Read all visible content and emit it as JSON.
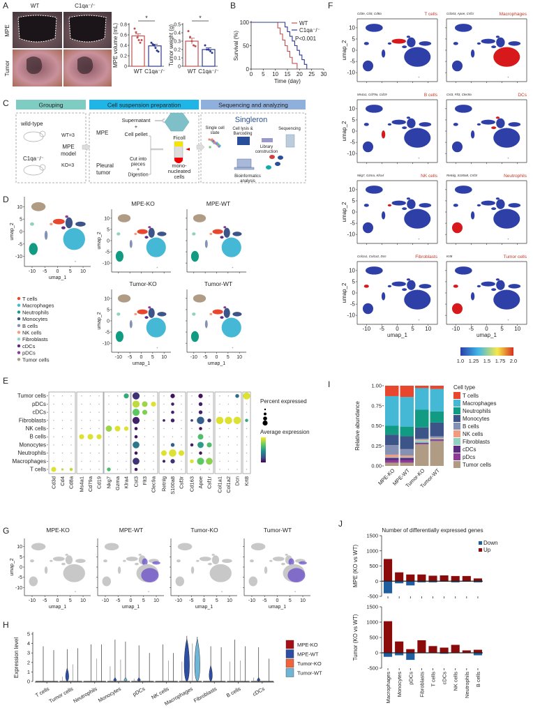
{
  "panel_labels": {
    "A": "A",
    "B": "B",
    "C": "C",
    "D": "D",
    "E": "E",
    "F": "F",
    "G": "G",
    "H": "H",
    "I": "I",
    "J": "J"
  },
  "colors": {
    "wt": "#c0504d",
    "ko": "#2b3990",
    "umap_base": "#2e3fa8",
    "umap_highlight": "#d7191c",
    "umap_grey": "#c8c8c8",
    "umap_purple": "#6a4fc9",
    "cell_types": {
      "T cells": "#e8472e",
      "Macrophages": "#45b8d6",
      "Neutrophils": "#119b83",
      "Monocytes": "#3c5488",
      "B cells": "#8491b4",
      "NK cells": "#f39b7f",
      "Fibroblasts": "#91d1c2",
      "cDCs": "#5b2c83",
      "pDCs": "#8e3b95",
      "Tumor cells": "#b09c85"
    }
  },
  "panel_a": {
    "col_labels": [
      "WT",
      "C1qa⁻/⁻"
    ],
    "row_labels": [
      "MPE",
      "Tumor"
    ],
    "charts": [
      {
        "type": "bar",
        "ylabel": "MPE volume (mL)",
        "categories": [
          "WT",
          "C1qa⁻/⁻"
        ],
        "values": [
          0.58,
          0.39
        ],
        "errors": [
          0.04,
          0.03
        ],
        "points": [
          [
            0.72,
            0.65,
            0.55,
            0.5,
            0.45,
            0.5
          ],
          [
            0.45,
            0.42,
            0.4,
            0.35,
            0.3,
            0.28
          ]
        ],
        "ylim": [
          0,
          0.8
        ],
        "yticks": [
          "0",
          "0.2",
          "0.4",
          "0.6",
          "0.8"
        ],
        "significance": "*"
      },
      {
        "type": "bar",
        "ylabel": "Tumor weight (g)",
        "categories": [
          "WT",
          "C1qa⁻/⁻"
        ],
        "values": [
          0.3,
          0.2
        ],
        "errors": [
          0.035,
          0.02
        ],
        "points": [
          [
            0.42,
            0.35,
            0.3,
            0.25,
            0.24
          ],
          [
            0.25,
            0.2,
            0.2,
            0.18,
            0.16
          ]
        ],
        "ylim": [
          0,
          0.5
        ],
        "yticks": [
          "0",
          "0.1",
          "0.2",
          "0.3",
          "0.4",
          "0.5"
        ],
        "significance": "*"
      }
    ]
  },
  "panel_b": {
    "chart_data": {
      "type": "line",
      "xlabel": "Time (day)",
      "ylabel": "Survival (%)",
      "xlim": [
        0,
        30
      ],
      "ylim": [
        0,
        100
      ],
      "xticks": [
        "0",
        "5",
        "10",
        "15",
        "20",
        "25",
        "30"
      ],
      "yticks": [
        "0",
        "50",
        "100"
      ],
      "series": [
        {
          "name": "WT",
          "color": "#c0504d",
          "steps": [
            [
              0,
              100
            ],
            [
              11,
              88
            ],
            [
              12,
              75
            ],
            [
              13,
              62
            ],
            [
              14,
              50
            ],
            [
              15,
              38
            ],
            [
              16,
              25
            ],
            [
              17,
              12
            ],
            [
              19,
              0
            ]
          ]
        },
        {
          "name": "C1qa⁻/⁻",
          "color": "#2b3990",
          "steps": [
            [
              0,
              100
            ],
            [
              14,
              90
            ],
            [
              15,
              80
            ],
            [
              16,
              70
            ],
            [
              17,
              60
            ],
            [
              18,
              50
            ],
            [
              19,
              40
            ],
            [
              20,
              30
            ],
            [
              21,
              20
            ],
            [
              22,
              10
            ],
            [
              23,
              0
            ]
          ]
        }
      ],
      "annotation": "P<0.001"
    }
  },
  "panel_c": {
    "headers": [
      "Grouping",
      "Cell suspension preparation",
      "Sequencing and analyzing"
    ],
    "grouping": {
      "wt": "wild-type",
      "ko": "C1qa⁻/⁻",
      "wt_n": "WT=3",
      "ko_n": "KO=3",
      "model": [
        "MPE",
        "model"
      ]
    },
    "prep": {
      "mpe": "MPE",
      "tumor": [
        "Pleural",
        "tumor"
      ],
      "supernatant": "Supernatant",
      "plus": "+",
      "pellet": "Cell pellet",
      "cut": [
        "Cut into",
        "pieces",
        "+",
        "Digestion"
      ],
      "ficoll": "Ficoll",
      "mono": [
        "mono-",
        "nucleated",
        "cells"
      ]
    },
    "seq": {
      "brand": "Singleron",
      "single": [
        "Single cell",
        "state"
      ],
      "lysis": [
        "Cell lysis &",
        "Barcoding"
      ],
      "sequencing": "Sequencing",
      "library": [
        "Library",
        "construction"
      ],
      "bioinfo": [
        "Bioinformatics",
        "analysis"
      ]
    }
  },
  "panel_d": {
    "axis_x": "umap_1",
    "axis_y": "umap_2",
    "xticks": [
      "-10",
      "-5",
      "0",
      "5",
      "10"
    ],
    "yticks": [
      "-10",
      "-5",
      "0",
      "5",
      "10"
    ],
    "legend": [
      "T cells",
      "Macrophages",
      "Neutrophils",
      "Monocytes",
      "B cells",
      "NK cells",
      "Fibroblasts",
      "cDCs",
      "pDCs",
      "Tumor cells"
    ],
    "samples": [
      "MPE-KO",
      "MPE-WT",
      "Tumor-KO",
      "Tumor-WT"
    ]
  },
  "panel_e": {
    "chart_data": {
      "type": "dotplot",
      "rows": [
        "T cells",
        "Macrophages",
        "Neutrophils",
        "Monocytes",
        "B cells",
        "NK cells",
        "Fibroblasts",
        "cDCs",
        "pDCs",
        "Tumor cells"
      ],
      "gene_groups": [
        [
          "Cd3d",
          "Cd4",
          "Cd8a"
        ],
        [
          "Ms4a1",
          "Cd79a",
          "Cd19"
        ],
        [
          "Nkg7",
          "Gzma",
          "Klra4"
        ],
        [
          "Cst3",
          "Flt3",
          "Clec9a"
        ],
        [
          "Retnlg",
          "S100a8",
          "Csf3r"
        ],
        [
          "Cd163",
          "Apoe",
          "Csf1r"
        ],
        [
          "Col1a1",
          "Col1a2",
          "Dcn"
        ],
        [
          "Krt8"
        ]
      ],
      "dots_note_default": "low",
      "dots": [
        [
          "T cells",
          "Cd3d",
          0.6,
          0.95
        ],
        [
          "T cells",
          "Cd4",
          0.15,
          0.9
        ],
        [
          "T cells",
          "Cd8a",
          0.3,
          0.9
        ],
        [
          "T cells",
          "Nkg7",
          0.4,
          0.7
        ],
        [
          "T cells",
          "Cst3",
          0.3,
          0.05
        ],
        [
          "Macrophages",
          "Cst3",
          0.9,
          0.15
        ],
        [
          "Macrophages",
          "Retnlg",
          0.25,
          0.1
        ],
        [
          "Macrophages",
          "S100a8",
          0.5,
          0.15
        ],
        [
          "Macrophages",
          "Cd163",
          0.4,
          0.95
        ],
        [
          "Macrophages",
          "Apoe",
          0.95,
          0.75
        ],
        [
          "Macrophages",
          "Csf1r",
          0.9,
          0.82
        ],
        [
          "Neutrophils",
          "Cst3",
          0.3,
          0.05
        ],
        [
          "Neutrophils",
          "Retnlg",
          0.7,
          0.95
        ],
        [
          "Neutrophils",
          "S100a8",
          1.0,
          0.95
        ],
        [
          "Neutrophils",
          "Csf3r",
          0.7,
          0.95
        ],
        [
          "Neutrophils",
          "Apoe",
          0.3,
          0.05
        ],
        [
          "Monocytes",
          "Cst3",
          0.9,
          0.4
        ],
        [
          "Monocytes",
          "S100a8",
          0.4,
          0.3
        ],
        [
          "Monocytes",
          "Cd163",
          0.3,
          0.1
        ],
        [
          "Monocytes",
          "Apoe",
          0.8,
          0.55
        ],
        [
          "Monocytes",
          "Csf1r",
          0.6,
          0.7
        ],
        [
          "B cells",
          "Ms4a1",
          0.6,
          0.95
        ],
        [
          "B cells",
          "Cd79a",
          0.7,
          0.95
        ],
        [
          "B cells",
          "Cd19",
          0.6,
          0.95
        ],
        [
          "B cells",
          "Cst3",
          0.3,
          0.05
        ],
        [
          "B cells",
          "Apoe",
          0.7,
          0.7
        ],
        [
          "NK cells",
          "Nkg7",
          0.8,
          0.85
        ],
        [
          "NK cells",
          "Gzma",
          0.7,
          0.95
        ],
        [
          "NK cells",
          "Klra4",
          0.5,
          0.95
        ],
        [
          "NK cells",
          "Cst3",
          0.3,
          0.05
        ],
        [
          "NK cells",
          "Apoe",
          0.3,
          0.05
        ],
        [
          "Fibroblasts",
          "Cst3",
          0.95,
          0.1
        ],
        [
          "Fibroblasts",
          "Retnlg",
          0.2,
          0.1
        ],
        [
          "Fibroblasts",
          "S100a8",
          0.4,
          0.1
        ],
        [
          "Fibroblasts",
          "Cd163",
          0.2,
          0.2
        ],
        [
          "Fibroblasts",
          "Apoe",
          1.0,
          0.3
        ],
        [
          "Fibroblasts",
          "Csf1r",
          0.4,
          0.15
        ],
        [
          "Fibroblasts",
          "Col1a1",
          1.0,
          0.95
        ],
        [
          "Fibroblasts",
          "Col1a2",
          1.0,
          0.95
        ],
        [
          "Fibroblasts",
          "Dcn",
          1.0,
          0.95
        ],
        [
          "Fibroblasts",
          "Krt8",
          0.3,
          0.6
        ],
        [
          "cDCs",
          "Cst3",
          0.95,
          0.75
        ],
        [
          "cDCs",
          "Flt3",
          0.6,
          0.8
        ],
        [
          "cDCs",
          "S100a8",
          0.3,
          0.1
        ],
        [
          "cDCs",
          "Apoe",
          0.4,
          0.1
        ],
        [
          "pDCs",
          "Cst3",
          0.95,
          0.9
        ],
        [
          "pDCs",
          "Flt3",
          0.7,
          0.85
        ],
        [
          "pDCs",
          "Clec9a",
          0.6,
          0.95
        ],
        [
          "pDCs",
          "S100a8",
          0.3,
          0.1
        ],
        [
          "pDCs",
          "Apoe",
          0.4,
          0.1
        ],
        [
          "Tumor cells",
          "Klra4",
          0.6,
          0.6
        ],
        [
          "Tumor cells",
          "Cst3",
          0.95,
          0.15
        ],
        [
          "Tumor cells",
          "S100a8",
          0.5,
          0.05
        ],
        [
          "Tumor cells",
          "Apoe",
          0.5,
          0.05
        ],
        [
          "Tumor cells",
          "Dcn",
          0.4,
          0.35
        ],
        [
          "Tumor cells",
          "Krt8",
          0.95,
          0.95
        ]
      ],
      "legend_size_title": "Percent expressed",
      "legend_color_title": "Average expression"
    }
  },
  "panel_f": {
    "panels": [
      {
        "genes": "Cd3e, Cd4, Cd8a",
        "title": "T cells",
        "highlight": [
          "T cells"
        ]
      },
      {
        "genes": "Cd163, Apoe, Csf1r",
        "title": "Macrophages",
        "highlight": [
          "Macrophages"
        ]
      },
      {
        "genes": "Ms4a1, Cd79a, Cd19",
        "title": "B cells",
        "highlight": [
          "B cells"
        ]
      },
      {
        "genes": "Cst3, Flt3, Clec9a",
        "title": "DCs",
        "highlight": [
          "cDCs",
          "pDCs"
        ]
      },
      {
        "genes": "Nkg7, Gzma, Klra4",
        "title": "NK cells",
        "highlight": [
          "NK cells"
        ]
      },
      {
        "genes": "Retnlg, S100a8, Csf3r",
        "title": "Neutrophils",
        "highlight": [
          "Neutrophils"
        ]
      },
      {
        "genes": "Col1a1, Col1a2, Dcn",
        "title": "Fibroblasts",
        "highlight": [
          "Fibroblasts"
        ]
      },
      {
        "genes": "Krt8",
        "title": "Tumor cells",
        "highlight": [
          "Neutrophils",
          "Fibroblasts"
        ]
      }
    ],
    "colorbar": {
      "min": 1.0,
      "max": 2.0,
      "ticks": [
        "1.0",
        "1.25",
        "1.5",
        "1.75",
        "2.0"
      ],
      "colors": [
        "#2b3fa8",
        "#3fb5e8",
        "#f5e94a",
        "#d7301f"
      ]
    }
  },
  "panel_g": {
    "samples": [
      "MPE-KO",
      "MPE-WT",
      "Tumor-KO",
      "Tumor-WT"
    ],
    "wt_signal": [
      0,
      1,
      0,
      1
    ]
  },
  "panel_h": {
    "chart_data": {
      "type": "violin",
      "ylabel": "Expression level",
      "ylim": [
        0,
        5
      ],
      "yticks": [
        "0",
        "1",
        "2",
        "3",
        "4",
        "5"
      ],
      "categories": [
        "T cells",
        "Tumor cells",
        "Neutrophils",
        "Monocytes",
        "pDCs",
        "NK cells",
        "Macrophages",
        "Fibroblasts",
        "B cells",
        "cDCs"
      ],
      "groups": [
        "MPE-KO",
        "MPE-WT",
        "Tumor-KO",
        "Tumor-WT"
      ],
      "group_colors": [
        "#a50f15",
        "#2c4ea3",
        "#f0643c",
        "#6fb6d6"
      ],
      "max_values": [
        [
          0,
          3.7,
          0,
          3.3
        ],
        [
          0.5,
          3.4,
          1.8,
          3.5
        ],
        [
          0,
          3.9,
          2.4,
          3.9
        ],
        [
          1.6,
          4.4,
          2.3,
          4.2
        ],
        [
          0.3,
          3.8,
          0,
          3.0
        ],
        [
          0,
          3.9,
          2.2,
          3.0
        ],
        [
          2.1,
          4.8,
          4.0,
          4.7
        ],
        [
          0,
          3.7,
          0,
          3.6
        ],
        [
          2.1,
          4.4,
          2.2,
          3.7
        ],
        [
          0.4,
          3.6,
          0,
          2.4
        ]
      ],
      "bulk": [
        [
          0,
          0
        ],
        [
          1.0,
          0
        ],
        [
          0,
          0
        ],
        [
          0.3,
          0.3
        ],
        [
          0.3,
          0
        ],
        [
          0,
          0
        ],
        [
          3.2,
          3.2
        ],
        [
          1.2,
          0
        ],
        [
          0,
          0
        ],
        [
          0.3,
          0
        ]
      ]
    }
  },
  "panel_i": {
    "chart_data": {
      "type": "bar",
      "stacked": true,
      "ylabel": "Relative abundance",
      "ylim": [
        0,
        1
      ],
      "yticks": [
        "0.00",
        "0.25",
        "0.50",
        "0.75",
        "1.00"
      ],
      "categories": [
        "MPE-KO",
        "MPE-WT",
        "Tumor-KO",
        "Tumor-WT"
      ],
      "legend_title": "Cell type",
      "legend": [
        "T cells",
        "Macrophages",
        "Neutrophils",
        "Monocytes",
        "B cells",
        "NK cells",
        "Fibroblasts",
        "cDCs",
        "pDcs",
        "Tumor cells"
      ],
      "stack_order_bottom_up": [
        "Tumor cells",
        "pDCs",
        "cDCs",
        "Fibroblasts",
        "NK cells",
        "B cells",
        "Monocytes",
        "Neutrophils",
        "Macrophages",
        "T cells"
      ],
      "values": [
        [
          0.04,
          0.03,
          0.03,
          0.01,
          0.03,
          0.12,
          0.13,
          0.11,
          0.37,
          0.13
        ],
        [
          0.04,
          0.03,
          0.03,
          0.01,
          0.02,
          0.08,
          0.16,
          0.12,
          0.37,
          0.14
        ],
        [
          0.27,
          0.01,
          0.01,
          0.03,
          0.01,
          0.01,
          0.14,
          0.22,
          0.27,
          0.03
        ],
        [
          0.31,
          0.01,
          0.01,
          0.01,
          0.01,
          0.02,
          0.17,
          0.14,
          0.28,
          0.04
        ]
      ]
    }
  },
  "panel_j": {
    "chart_data": {
      "type": "bar",
      "title": "Number of differentially expressed genes",
      "categories": [
        "Macrophages",
        "Monocytes",
        "pDCs",
        "Fibroblasts",
        "T cells",
        "cDCs",
        "NK cells",
        "Neutrophils",
        "B cells"
      ],
      "ylim": [
        -500,
        1500
      ],
      "yticks": [
        "-500",
        "0",
        "500",
        "1000",
        "1500"
      ],
      "legend": [
        {
          "name": "Down",
          "color": "#1f5fa0"
        },
        {
          "name": "Up",
          "color": "#8b0a0a"
        }
      ],
      "panels": [
        {
          "ylabel": "MPE (KO vs WT)",
          "up": [
            730,
            290,
            220,
            220,
            180,
            190,
            170,
            170,
            90
          ],
          "down": [
            -400,
            -70,
            -140,
            -40,
            -40,
            -20,
            -40,
            -20,
            -40
          ]
        },
        {
          "ylabel": "Tumor (KO vs WT)",
          "up": [
            1030,
            370,
            120,
            410,
            220,
            170,
            260,
            80,
            100
          ],
          "down": [
            -130,
            -80,
            -230,
            -10,
            -10,
            -30,
            -10,
            -10,
            -80
          ]
        }
      ]
    }
  }
}
